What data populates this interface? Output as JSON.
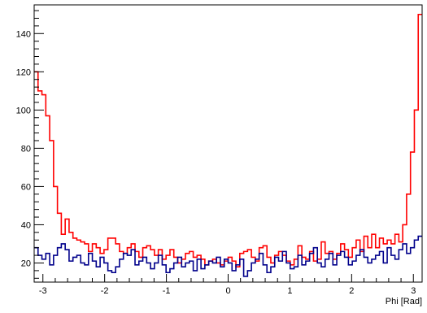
{
  "chart_data": {
    "type": "histogram-line",
    "title": "",
    "xlabel": "Phi [Rad]",
    "ylabel": "",
    "xlim": [
      -3.1416,
      3.1416
    ],
    "ylim": [
      10,
      155
    ],
    "x_ticks": [
      -3,
      -2,
      -1,
      0,
      1,
      2,
      3
    ],
    "x_tick_labels": [
      "-3",
      "-2",
      "-1",
      "0",
      "1",
      "2",
      "3"
    ],
    "y_ticks": [
      20,
      40,
      60,
      80,
      100,
      120,
      140
    ],
    "y_tick_labels": [
      "20",
      "40",
      "60",
      "80",
      "100",
      "120",
      "140"
    ],
    "grid": false,
    "bins": 100,
    "series": [
      {
        "color": "#ff0000",
        "values": [
          120,
          110,
          108,
          97,
          84,
          60,
          46,
          35,
          43,
          36,
          33,
          32,
          31,
          30,
          26,
          30,
          28,
          25,
          27,
          33,
          33,
          30,
          26,
          25,
          28,
          30,
          26,
          23,
          28,
          29,
          27,
          24,
          27,
          22,
          24,
          27,
          23,
          20,
          22,
          25,
          26,
          23,
          24,
          22,
          19,
          21,
          22,
          20,
          19,
          21,
          23,
          21,
          18,
          25,
          26,
          27,
          23,
          21,
          28,
          29,
          23,
          20,
          24,
          26,
          24,
          21,
          19,
          22,
          29,
          23,
          22,
          26,
          21,
          22,
          31,
          25,
          26,
          22,
          25,
          30,
          27,
          23,
          28,
          32,
          26,
          34,
          28,
          35,
          28,
          33,
          30,
          32,
          30,
          35,
          31,
          40,
          56,
          78,
          100,
          150
        ]
      },
      {
        "color": "#00008b",
        "values": [
          28,
          24,
          22,
          25,
          19,
          24,
          28,
          30,
          27,
          21,
          23,
          24,
          20,
          19,
          25,
          21,
          18,
          23,
          20,
          16,
          15,
          18,
          22,
          25,
          24,
          27,
          19,
          21,
          23,
          20,
          17,
          20,
          24,
          19,
          15,
          17,
          20,
          23,
          18,
          20,
          21,
          16,
          22,
          17,
          19,
          21,
          20,
          23,
          18,
          22,
          20,
          16,
          19,
          22,
          13,
          16,
          20,
          22,
          25,
          19,
          15,
          18,
          23,
          21,
          26,
          20,
          17,
          18,
          24,
          19,
          21,
          25,
          28,
          20,
          18,
          22,
          25,
          19,
          24,
          26,
          23,
          19,
          21,
          24,
          27,
          23,
          20,
          22,
          24,
          26,
          20,
          28,
          24,
          22,
          27,
          30,
          25,
          28,
          32,
          34
        ]
      }
    ]
  }
}
